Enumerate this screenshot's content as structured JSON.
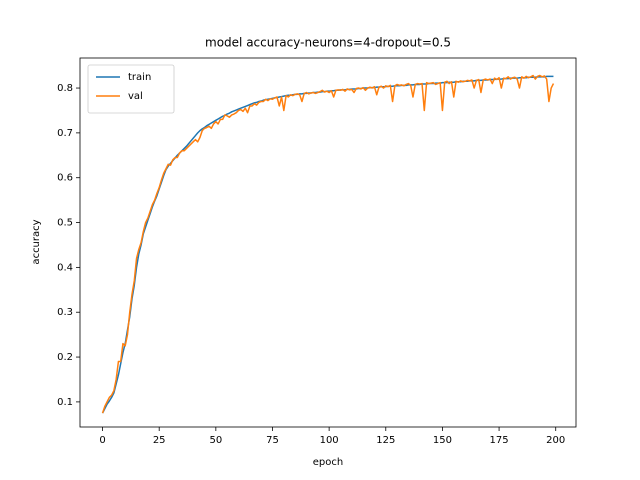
{
  "chart_data": {
    "type": "line",
    "title": "model accuracy-neurons=4-dropout=0.5",
    "x_label": "epoch",
    "y_label": "accuracy",
    "legend": "upper left",
    "xlim": [
      -9.95,
      208.95
    ],
    "ylim": [
      0.044,
      0.867
    ],
    "xticks": [
      0,
      25,
      50,
      75,
      100,
      125,
      150,
      175,
      200
    ],
    "yticks": [
      0.1,
      0.2,
      0.3,
      0.4,
      0.5,
      0.6,
      0.7,
      0.8
    ],
    "x": [
      0,
      1,
      2,
      3,
      4,
      5,
      6,
      7,
      8,
      9,
      10,
      11,
      12,
      13,
      14,
      15,
      16,
      17,
      18,
      19,
      20,
      21,
      22,
      23,
      24,
      25,
      26,
      27,
      28,
      29,
      30,
      31,
      32,
      33,
      34,
      35,
      36,
      37,
      38,
      39,
      40,
      41,
      42,
      43,
      44,
      45,
      46,
      47,
      48,
      49,
      50,
      51,
      52,
      53,
      54,
      55,
      56,
      57,
      58,
      59,
      60,
      61,
      62,
      63,
      64,
      65,
      66,
      67,
      68,
      69,
      70,
      71,
      72,
      73,
      74,
      75,
      76,
      77,
      78,
      79,
      80,
      81,
      82,
      83,
      84,
      85,
      86,
      87,
      88,
      89,
      90,
      91,
      92,
      93,
      94,
      95,
      96,
      97,
      98,
      99,
      100,
      101,
      102,
      103,
      104,
      105,
      106,
      107,
      108,
      109,
      110,
      111,
      112,
      113,
      114,
      115,
      116,
      117,
      118,
      119,
      120,
      121,
      122,
      123,
      124,
      125,
      126,
      127,
      128,
      129,
      130,
      131,
      132,
      133,
      134,
      135,
      136,
      137,
      138,
      139,
      140,
      141,
      142,
      143,
      144,
      145,
      146,
      147,
      148,
      149,
      150,
      151,
      152,
      153,
      154,
      155,
      156,
      157,
      158,
      159,
      160,
      161,
      162,
      163,
      164,
      165,
      166,
      167,
      168,
      169,
      170,
      171,
      172,
      173,
      174,
      175,
      176,
      177,
      178,
      179,
      180,
      181,
      182,
      183,
      184,
      185,
      186,
      187,
      188,
      189,
      190,
      191,
      192,
      193,
      194,
      195,
      196,
      197,
      198,
      199
    ],
    "series": [
      {
        "name": "train",
        "color": "#1f77b4",
        "values": [
          0.075,
          0.085,
          0.095,
          0.102,
          0.11,
          0.12,
          0.14,
          0.16,
          0.185,
          0.21,
          0.23,
          0.26,
          0.29,
          0.33,
          0.36,
          0.4,
          0.43,
          0.45,
          0.475,
          0.49,
          0.505,
          0.52,
          0.535,
          0.548,
          0.56,
          0.575,
          0.59,
          0.605,
          0.618,
          0.626,
          0.632,
          0.638,
          0.644,
          0.65,
          0.655,
          0.66,
          0.665,
          0.67,
          0.676,
          0.682,
          0.688,
          0.694,
          0.7,
          0.705,
          0.709,
          0.712,
          0.716,
          0.719,
          0.722,
          0.725,
          0.728,
          0.731,
          0.734,
          0.737,
          0.739,
          0.742,
          0.744,
          0.747,
          0.749,
          0.751,
          0.753,
          0.755,
          0.757,
          0.759,
          0.761,
          0.763,
          0.765,
          0.767,
          0.768,
          0.77,
          0.771,
          0.773,
          0.774,
          0.775,
          0.776,
          0.777,
          0.778,
          0.779,
          0.78,
          0.781,
          0.782,
          0.783,
          0.784,
          0.784,
          0.785,
          0.786,
          0.786,
          0.787,
          0.787,
          0.788,
          0.788,
          0.789,
          0.789,
          0.79,
          0.79,
          0.791,
          0.791,
          0.792,
          0.792,
          0.793,
          0.793,
          0.794,
          0.794,
          0.795,
          0.795,
          0.796,
          0.796,
          0.796,
          0.797,
          0.797,
          0.798,
          0.798,
          0.798,
          0.799,
          0.799,
          0.8,
          0.8,
          0.8,
          0.801,
          0.801,
          0.801,
          0.802,
          0.802,
          0.803,
          0.803,
          0.803,
          0.804,
          0.804,
          0.804,
          0.805,
          0.805,
          0.805,
          0.806,
          0.806,
          0.806,
          0.807,
          0.807,
          0.807,
          0.808,
          0.808,
          0.808,
          0.809,
          0.809,
          0.809,
          0.81,
          0.81,
          0.81,
          0.811,
          0.811,
          0.811,
          0.812,
          0.812,
          0.812,
          0.813,
          0.813,
          0.813,
          0.814,
          0.814,
          0.814,
          0.815,
          0.815,
          0.815,
          0.816,
          0.816,
          0.816,
          0.817,
          0.817,
          0.817,
          0.818,
          0.818,
          0.818,
          0.819,
          0.819,
          0.819,
          0.82,
          0.82,
          0.82,
          0.821,
          0.821,
          0.821,
          0.822,
          0.822,
          0.822,
          0.822,
          0.823,
          0.823,
          0.823,
          0.823,
          0.824,
          0.824,
          0.824,
          0.824,
          0.825,
          0.825,
          0.825,
          0.825,
          0.826,
          0.826,
          0.826,
          0.826
        ]
      },
      {
        "name": "val",
        "color": "#ff7f0e",
        "values": [
          0.075,
          0.09,
          0.1,
          0.11,
          0.115,
          0.125,
          0.15,
          0.19,
          0.19,
          0.23,
          0.225,
          0.25,
          0.3,
          0.34,
          0.37,
          0.42,
          0.44,
          0.455,
          0.48,
          0.5,
          0.51,
          0.525,
          0.54,
          0.55,
          0.565,
          0.578,
          0.595,
          0.61,
          0.62,
          0.63,
          0.628,
          0.64,
          0.645,
          0.645,
          0.655,
          0.66,
          0.66,
          0.665,
          0.67,
          0.675,
          0.68,
          0.685,
          0.68,
          0.69,
          0.705,
          0.71,
          0.712,
          0.715,
          0.71,
          0.72,
          0.725,
          0.72,
          0.73,
          0.73,
          0.74,
          0.738,
          0.735,
          0.74,
          0.742,
          0.745,
          0.75,
          0.752,
          0.748,
          0.755,
          0.745,
          0.76,
          0.76,
          0.765,
          0.762,
          0.768,
          0.77,
          0.77,
          0.775,
          0.772,
          0.776,
          0.775,
          0.778,
          0.78,
          0.76,
          0.78,
          0.75,
          0.783,
          0.78,
          0.785,
          0.783,
          0.786,
          0.787,
          0.785,
          0.77,
          0.788,
          0.79,
          0.787,
          0.789,
          0.79,
          0.788,
          0.79,
          0.792,
          0.795,
          0.791,
          0.793,
          0.79,
          0.794,
          0.78,
          0.795,
          0.796,
          0.795,
          0.797,
          0.793,
          0.798,
          0.796,
          0.797,
          0.79,
          0.799,
          0.8,
          0.798,
          0.801,
          0.795,
          0.8,
          0.802,
          0.8,
          0.803,
          0.785,
          0.802,
          0.804,
          0.8,
          0.805,
          0.803,
          0.806,
          0.77,
          0.805,
          0.808,
          0.806,
          0.807,
          0.805,
          0.808,
          0.81,
          0.806,
          0.78,
          0.808,
          0.81,
          0.809,
          0.81,
          0.75,
          0.812,
          0.81,
          0.811,
          0.812,
          0.808,
          0.81,
          0.812,
          0.75,
          0.813,
          0.815,
          0.81,
          0.814,
          0.78,
          0.815,
          0.813,
          0.816,
          0.814,
          0.815,
          0.817,
          0.816,
          0.818,
          0.8,
          0.817,
          0.819,
          0.79,
          0.818,
          0.82,
          0.818,
          0.82,
          0.81,
          0.822,
          0.819,
          0.823,
          0.8,
          0.822,
          0.821,
          0.825,
          0.82,
          0.823,
          0.824,
          0.82,
          0.8,
          0.825,
          0.822,
          0.826,
          0.823,
          0.825,
          0.828,
          0.82,
          0.826,
          0.828,
          0.825,
          0.827,
          0.82,
          0.77,
          0.8,
          0.81
        ]
      }
    ]
  }
}
